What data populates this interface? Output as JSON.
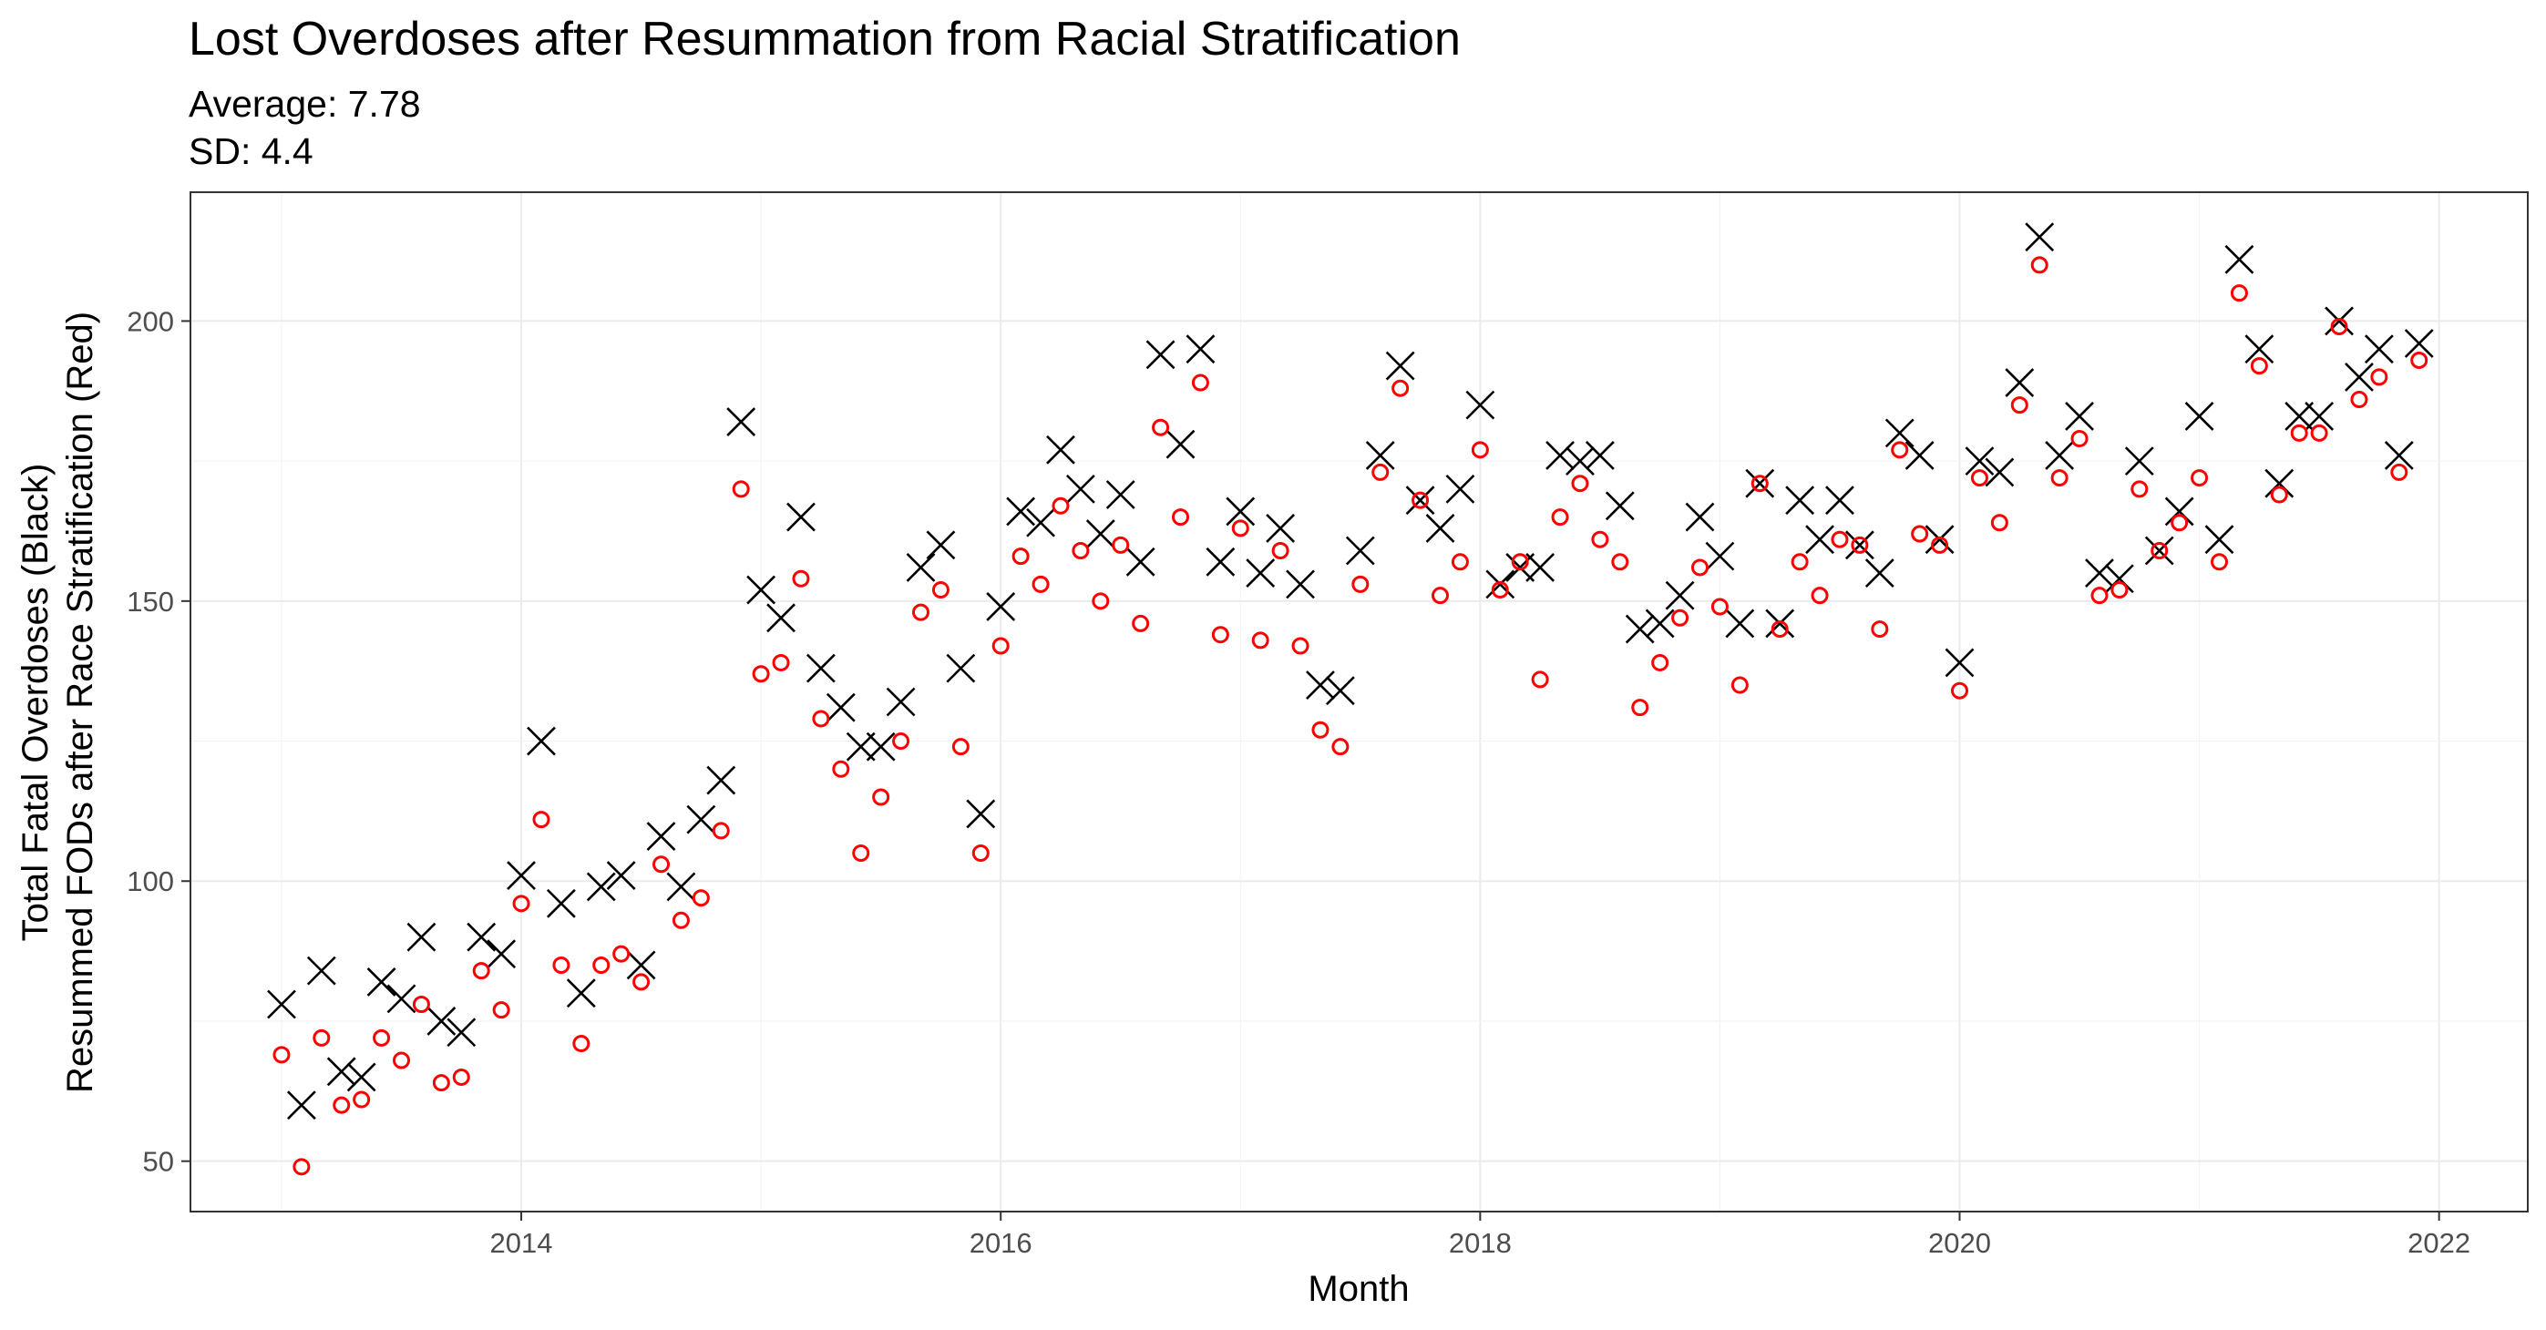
{
  "chart_data": {
    "type": "scatter",
    "title": "Lost Overdoses after Resummation from Racial Stratification",
    "subtitle_lines": [
      "Average: 7.78",
      "SD: 4.4"
    ],
    "xlabel": "Month",
    "ylabel_lines": [
      "Total Fatal Overdoses (Black)",
      "Resummed FODs after Race Stratification (Red)"
    ],
    "x_ticks": [
      2014,
      2016,
      2018,
      2020,
      2022
    ],
    "y_ticks": [
      50,
      100,
      150,
      200
    ],
    "xlim": [
      2012.62,
      2022.37
    ],
    "ylim": [
      41,
      223
    ],
    "grid": true,
    "start": {
      "year": 2013,
      "month": 1
    },
    "series": [
      {
        "marker": "x",
        "color": "#000000",
        "values": [
          78,
          60,
          84,
          66,
          65,
          82,
          79,
          90,
          75,
          73,
          90,
          87,
          101,
          125,
          96,
          80,
          99,
          101,
          85,
          108,
          99,
          111,
          118,
          182,
          152,
          147,
          165,
          138,
          131,
          124,
          124,
          132,
          156,
          160,
          138,
          112,
          149,
          166,
          164,
          177,
          170,
          162,
          169,
          157,
          194,
          178,
          195,
          157,
          166,
          155,
          163,
          153,
          135,
          134,
          159,
          176,
          192,
          168,
          163,
          170,
          185,
          153,
          156,
          156,
          176,
          175,
          176,
          167,
          145,
          146,
          151,
          165,
          158,
          146,
          171,
          146,
          168,
          161,
          168,
          160,
          155,
          180,
          176,
          161,
          139,
          175,
          173,
          189,
          215,
          176,
          183,
          155,
          154,
          175,
          159,
          166,
          183,
          161,
          211,
          195,
          171,
          183,
          183,
          200,
          190,
          195,
          176,
          196
        ]
      },
      {
        "marker": "circle",
        "color": "#ff0000",
        "values": [
          69,
          49,
          72,
          60,
          61,
          72,
          68,
          78,
          64,
          65,
          84,
          77,
          96,
          111,
          85,
          71,
          85,
          87,
          82,
          103,
          93,
          97,
          109,
          170,
          137,
          139,
          154,
          129,
          120,
          105,
          115,
          125,
          148,
          152,
          124,
          105,
          142,
          158,
          153,
          167,
          159,
          150,
          160,
          146,
          181,
          165,
          189,
          144,
          163,
          143,
          159,
          142,
          127,
          124,
          153,
          173,
          188,
          168,
          151,
          157,
          177,
          152,
          157,
          136,
          165,
          171,
          161,
          157,
          131,
          139,
          147,
          156,
          149,
          135,
          171,
          145,
          157,
          151,
          161,
          160,
          145,
          177,
          162,
          160,
          134,
          172,
          164,
          185,
          210,
          172,
          179,
          151,
          152,
          170,
          159,
          164,
          172,
          157,
          205,
          192,
          169,
          180,
          180,
          199,
          186,
          190,
          173,
          193
        ]
      }
    ]
  }
}
